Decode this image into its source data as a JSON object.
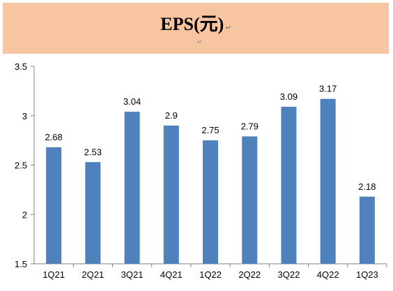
{
  "banner": {
    "title": "EPS(元)",
    "mark": "↵",
    "side_mark": "·"
  },
  "chart_data": {
    "type": "bar",
    "title": "",
    "xlabel": "",
    "ylabel": "",
    "categories": [
      "1Q21",
      "2Q21",
      "3Q21",
      "4Q21",
      "1Q22",
      "2Q22",
      "3Q22",
      "4Q22",
      "1Q23"
    ],
    "values": [
      2.68,
      2.53,
      3.04,
      2.9,
      2.75,
      2.79,
      3.09,
      3.17,
      2.18
    ],
    "value_labels": [
      "2.68",
      "2.53",
      "3.04",
      "2.9",
      "2.75",
      "2.79",
      "3.09",
      "3.17",
      "2.18"
    ],
    "ylim": [
      1.5,
      3.5
    ],
    "yticks": [
      1.5,
      2,
      2.5,
      3,
      3.5
    ],
    "ytick_labels": [
      "1.5",
      "2",
      "2.5",
      "3",
      "3.5"
    ],
    "grid": false,
    "legend": "none",
    "bar_color": "#4f81bd",
    "axis_color": "#808080"
  }
}
